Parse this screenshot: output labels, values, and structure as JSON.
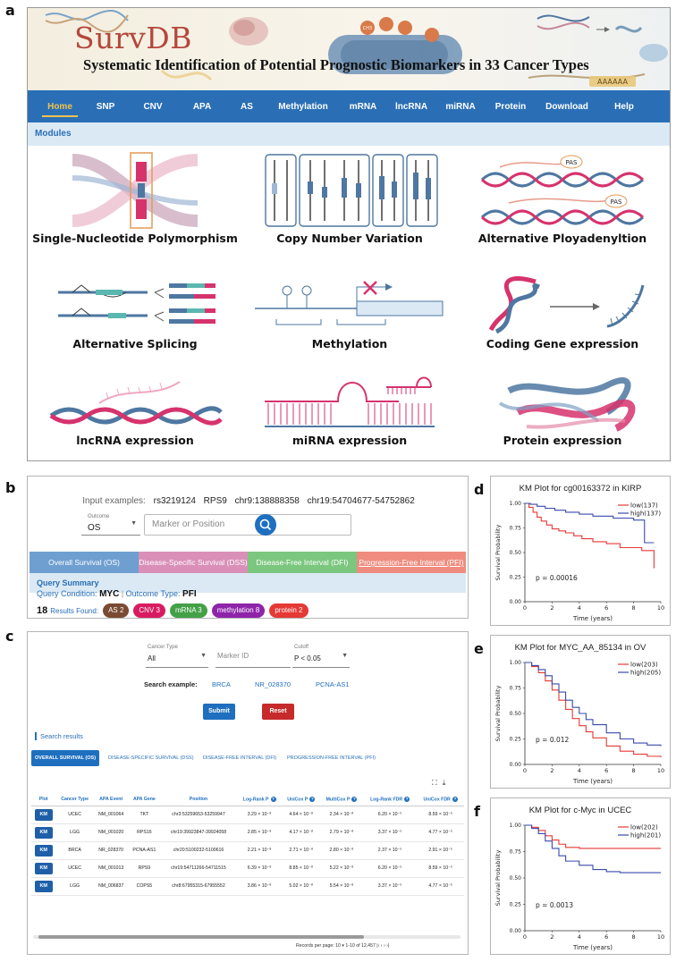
{
  "panel_labels": {
    "a": "a",
    "b": "b",
    "c": "c",
    "d": "d",
    "e": "e",
    "f": "f"
  },
  "app": {
    "logo": "SurvDB",
    "tagline": "Systematic Identification of Potential Prognostic Biomarkers in 33 Cancer Types",
    "banner_strand_text": "AAAAAA",
    "banner_circle_label": "CH3"
  },
  "nav": {
    "items": [
      "Home",
      "SNP",
      "CNV",
      "APA",
      "AS",
      "Methylation",
      "mRNA",
      "lncRNA",
      "miRNA",
      "Protein",
      "Download",
      "Help"
    ],
    "active_index": 0,
    "active_color": "#f2c14e",
    "bar_color": "#2a6fb6"
  },
  "modules_title": "Modules",
  "modules": {
    "snp": "Single-Nucleotide Polymorphism",
    "cnv": "Copy Number Variation",
    "apa": "Alternative Ployadenyltion",
    "apa_sites": [
      "PAS",
      "PAS"
    ],
    "as": "Alternative Splicing",
    "methylation": "Methylation",
    "coding": "Coding Gene expression",
    "lncrna": "lncRNA expression",
    "mirna": "miRNA expression",
    "protein": "Protein expression"
  },
  "query": {
    "examples_label": "Input examples:",
    "examples": [
      "rs3219124",
      "RPS9",
      "chr9:138888358",
      "chr19:54704677-54752862"
    ],
    "outcome_caption": "Outcome",
    "outcome_value": "OS",
    "marker_placeholder": "Marker or Position",
    "tabs": [
      {
        "label": "Overall Survival (OS)",
        "color": "#6f9fd0"
      },
      {
        "label": "Disease-Specific Survival (DSS)",
        "color": "#d98fb8"
      },
      {
        "label": "Disease-Free Interval (DFI)",
        "color": "#7cc77f"
      },
      {
        "label": "Progression-Free Interval (PFI)",
        "color": "#ef8c7f"
      }
    ],
    "summary_title": "Query Summary",
    "condition_label": "Query Condition:",
    "condition_value": "MYC",
    "outcome_type_label": "Outcome Type:",
    "outcome_type_value": "PFI",
    "results_count": "18",
    "results_label": "Results Found:",
    "result_pills": [
      {
        "label": "AS 2",
        "color": "#7a4a32"
      },
      {
        "label": "CNV 3",
        "color": "#d81b60"
      },
      {
        "label": "mRNA 3",
        "color": "#43a047"
      },
      {
        "label": "methylation 8",
        "color": "#8e24aa"
      },
      {
        "label": "protein 2",
        "color": "#e53935"
      }
    ]
  },
  "search": {
    "cancer_type_caption": "Cancer Type",
    "cancer_type_value": "All",
    "marker_id_placeholder": "Marker ID",
    "cutoff_caption": "Cutoff",
    "cutoff_value": "P < 0.05",
    "example_label": "Search example:",
    "examples": [
      "BRCA",
      "NR_028370",
      "PCNA-AS1"
    ],
    "submit": "Submit",
    "reset": "Reset",
    "results_title": "Search results",
    "tabs": [
      "OVERALL SURVIVAL (OS)",
      "DISEASE-SPECIFIC SURVIVAL (DSS)",
      "DISEASE-FREE INTERVAL (DFI)",
      "PROGRESSION-FREE INTERVAL (PFI)"
    ],
    "columns": [
      "Plot",
      "Cancer Type",
      "APA Event",
      "APA Gene",
      "Position",
      "Log-Rank P",
      "UniCox P",
      "MultiCox P",
      "Log-Rank FDR",
      "UniCox FDR"
    ],
    "rows": [
      [
        "KM",
        "UCEC",
        "NM_001064",
        "TKT",
        "chr3:53259653-53259947",
        "3.29 × 10⁻⁸",
        "4.64 × 10⁻⁸",
        "2.34 × 10⁻⁸",
        "6.20 × 10⁻⁵",
        "8.59 × 10⁻⁵"
      ],
      [
        "KM",
        "LGG",
        "NM_001020",
        "RPS16",
        "chr19:39923847-39924058",
        "2.85 × 10⁻⁸",
        "4.17 × 10⁻⁸",
        "2.79 × 10⁻⁸",
        "3.37 × 10⁻⁵",
        "4.77 × 10⁻⁵"
      ],
      [
        "KM",
        "BRCA",
        "NR_028370",
        "PCNA-AS1",
        "chr20:5100232-5100616",
        "2.21 × 10⁻⁸",
        "2.71 × 10⁻⁸",
        "2.80 × 10⁻⁸",
        "2.37 × 10⁻⁵",
        "2.91 × 10⁻⁵"
      ],
      [
        "KM",
        "UCEC",
        "NM_001013",
        "RPS9",
        "chr19:54711266-54711515",
        "6.39 × 10⁻⁸",
        "8.85 × 10⁻⁸",
        "5.22 × 10⁻⁸",
        "6.20 × 10⁻⁵",
        "8.59 × 10⁻⁵"
      ],
      [
        "KM",
        "LGG",
        "NM_006837",
        "COPS5",
        "chr8:67955315-67955552",
        "3.86 × 10⁻⁸",
        "5.02 × 10⁻⁸",
        "5.54 × 10⁻⁸",
        "3.37 × 10⁻⁵",
        "4.77 × 10⁻⁵"
      ]
    ],
    "pager": "Records per page: 10  ▾   1-10 of 12,457   |‹   ‹   ›   ›|"
  },
  "chart_data": [
    {
      "type": "line",
      "title": "KM Plot for cg00163372 in KIRP",
      "xlabel": "Time (years)",
      "ylabel": "Survival Probability",
      "xlim": [
        0,
        10
      ],
      "ylim": [
        0,
        1
      ],
      "xticks": [
        0,
        2,
        4,
        6,
        8,
        10
      ],
      "yticks": [
        0.0,
        0.25,
        0.5,
        0.75,
        1.0
      ],
      "ytick_labels": [
        "0.00",
        "0.25",
        "0.50",
        "0.75",
        "1.00"
      ],
      "legend": "top-right",
      "annotation": "p = 0.00016",
      "series": [
        {
          "name": "low(137)",
          "color": "#e53935",
          "x": [
            0,
            0.3,
            0.6,
            0.9,
            1.2,
            1.6,
            2,
            2.5,
            3,
            3.6,
            4.2,
            5,
            6,
            7,
            8.6,
            9.5
          ],
          "y": [
            1,
            0.96,
            0.91,
            0.86,
            0.82,
            0.78,
            0.74,
            0.72,
            0.7,
            0.67,
            0.64,
            0.61,
            0.59,
            0.55,
            0.52,
            0.34
          ]
        },
        {
          "name": "high(137)",
          "color": "#3949ab",
          "x": [
            0,
            0.4,
            0.9,
            1.5,
            2.2,
            3,
            4,
            5,
            6.5,
            8,
            8.8,
            9.5
          ],
          "y": [
            1,
            0.99,
            0.97,
            0.95,
            0.93,
            0.91,
            0.89,
            0.87,
            0.85,
            0.83,
            0.6,
            0.6
          ]
        }
      ]
    },
    {
      "type": "line",
      "title": "KM Plot for MYC_AA_85134 in OV",
      "xlabel": "Time (years)",
      "ylabel": "Survival Probability",
      "xlim": [
        0,
        10
      ],
      "ylim": [
        0,
        1
      ],
      "xticks": [
        0,
        2,
        4,
        6,
        8,
        10
      ],
      "yticks": [
        0.0,
        0.25,
        0.5,
        0.75,
        1.0
      ],
      "ytick_labels": [
        "0.00",
        "0.25",
        "0.50",
        "0.75",
        "1.00"
      ],
      "legend": "top-right",
      "annotation": "p = 0.012",
      "series": [
        {
          "name": "low(203)",
          "color": "#e53935",
          "x": [
            0,
            0.5,
            1,
            1.5,
            2,
            2.5,
            3,
            3.5,
            4,
            4.5,
            5,
            6,
            7,
            8,
            9,
            10
          ],
          "y": [
            1,
            0.96,
            0.9,
            0.82,
            0.73,
            0.63,
            0.54,
            0.45,
            0.38,
            0.32,
            0.26,
            0.18,
            0.13,
            0.1,
            0.08,
            0.07
          ]
        },
        {
          "name": "high(205)",
          "color": "#3949ab",
          "x": [
            0,
            0.5,
            1,
            1.5,
            2,
            2.5,
            3,
            3.5,
            4,
            4.5,
            5,
            6,
            7,
            8,
            9,
            10
          ],
          "y": [
            1,
            0.97,
            0.93,
            0.87,
            0.79,
            0.71,
            0.63,
            0.56,
            0.5,
            0.44,
            0.39,
            0.31,
            0.25,
            0.21,
            0.19,
            0.18
          ]
        }
      ]
    },
    {
      "type": "line",
      "title": "KM Plot for c-Myc in UCEC",
      "xlabel": "Time (years)",
      "ylabel": "Survival Probability",
      "xlim": [
        0,
        10
      ],
      "ylim": [
        0,
        1
      ],
      "xticks": [
        0,
        2,
        4,
        6,
        8,
        10
      ],
      "yticks": [
        0.0,
        0.25,
        0.5,
        0.75,
        1.0
      ],
      "ytick_labels": [
        "0.00",
        "0.25",
        "0.50",
        "0.75",
        "1.00"
      ],
      "legend": "top-right",
      "annotation": "p = 0.0013",
      "series": [
        {
          "name": "low(202)",
          "color": "#e53935",
          "x": [
            0,
            0.5,
            1,
            1.5,
            2,
            2.5,
            3,
            4,
            6,
            8,
            10
          ],
          "y": [
            1,
            0.98,
            0.95,
            0.9,
            0.86,
            0.82,
            0.79,
            0.78,
            0.78,
            0.78,
            0.78
          ]
        },
        {
          "name": "high(201)",
          "color": "#3949ab",
          "x": [
            0,
            0.5,
            1,
            1.5,
            2,
            2.5,
            3,
            4,
            5,
            6,
            7,
            8,
            10
          ],
          "y": [
            1,
            0.97,
            0.92,
            0.85,
            0.78,
            0.71,
            0.66,
            0.62,
            0.58,
            0.56,
            0.55,
            0.55,
            0.55
          ]
        }
      ]
    }
  ]
}
